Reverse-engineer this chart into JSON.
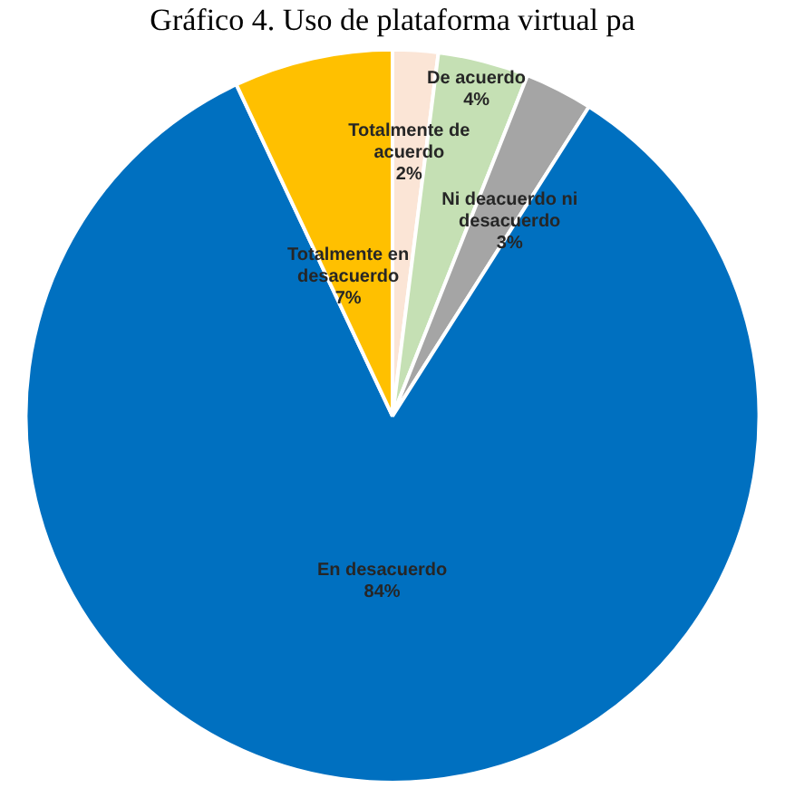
{
  "chart_data": {
    "type": "pie",
    "title": "Gráfico 4. Uso de plataforma virtual pa",
    "categories": [
      "Totalmente de acuerdo",
      "De acuerdo",
      "Ni deacuerdo ni desacuerdo",
      "En desacuerdo",
      "Totalmente en desacuerdo"
    ],
    "values": [
      2,
      4,
      3,
      84,
      7
    ],
    "colors": [
      "#fbe5d6",
      "#c5e0b4",
      "#a5a5a5",
      "#0070c0",
      "#ffc000"
    ],
    "value_labels": [
      "2%",
      "4%",
      "3%",
      "84%",
      "7%"
    ],
    "legend": false
  }
}
